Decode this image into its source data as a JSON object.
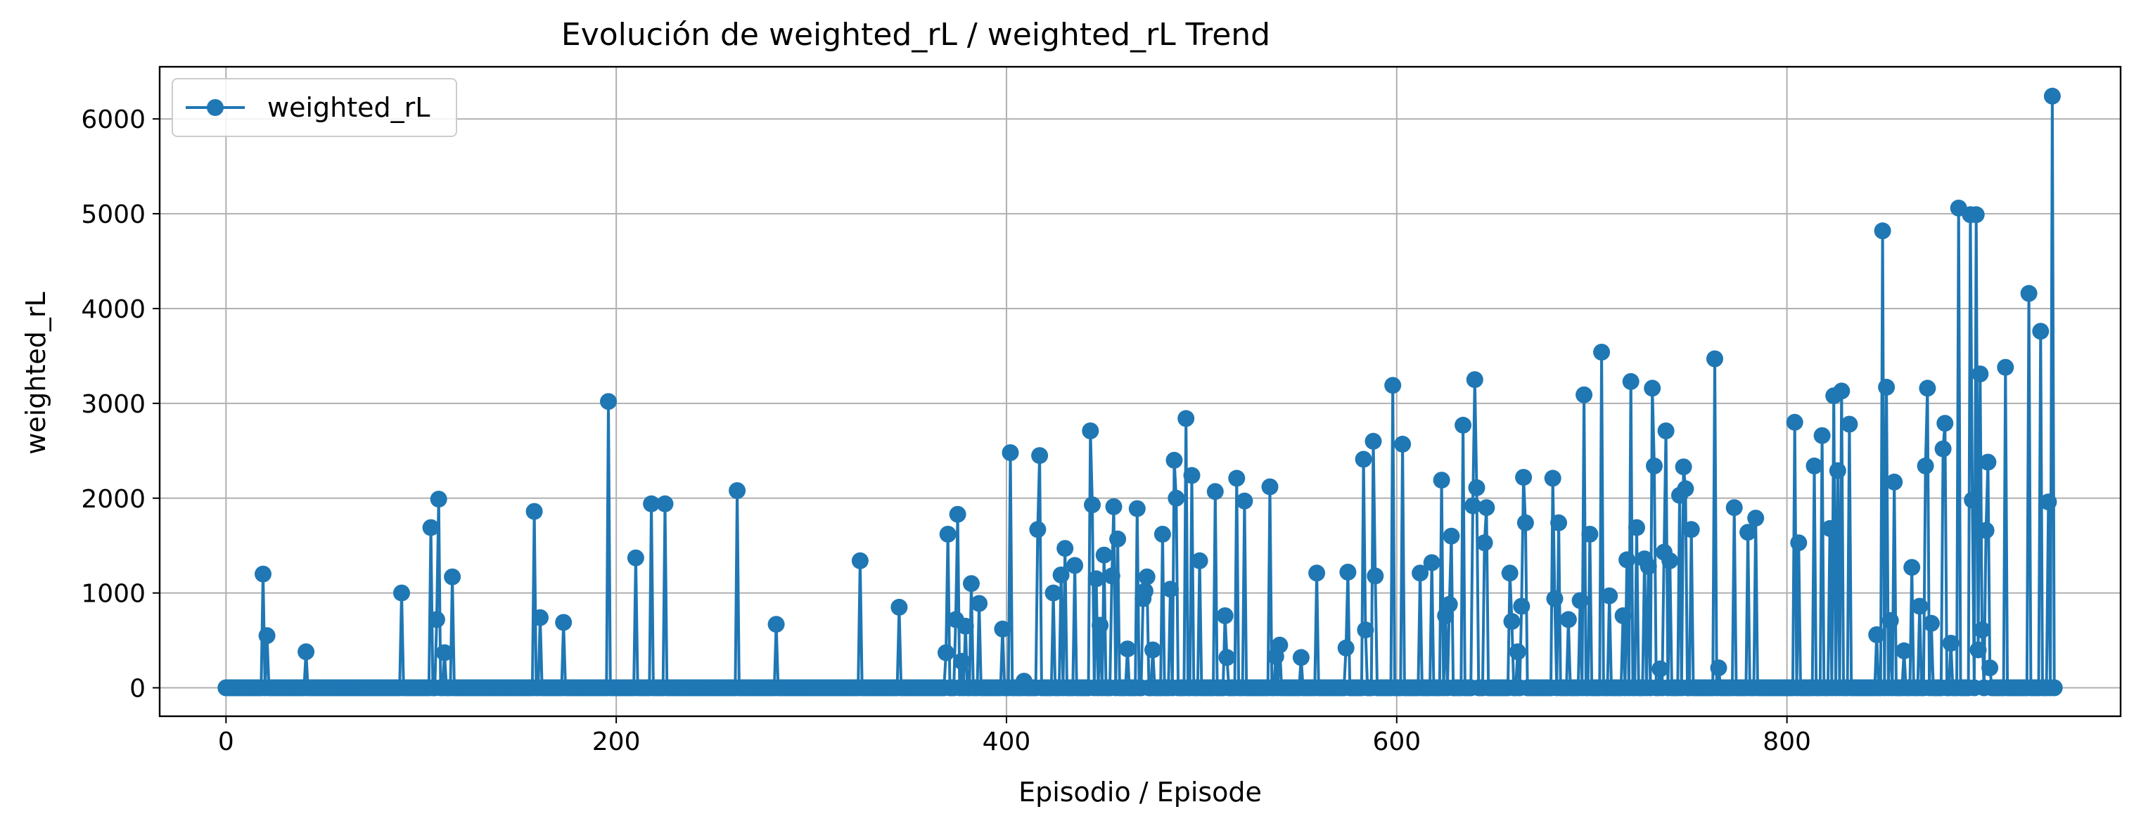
{
  "chart_data": {
    "type": "line",
    "title": "Evolución de weighted_rL / weighted_rL Trend",
    "xlabel": "Episodio / Episode",
    "ylabel": "weighted_rL",
    "xlim": [
      -34,
      971
    ],
    "ylim": [
      -300,
      6550
    ],
    "xticks": [
      0,
      200,
      400,
      600,
      800
    ],
    "yticks": [
      0,
      1000,
      2000,
      3000,
      4000,
      5000,
      6000
    ],
    "grid": true,
    "legend_position": "top-left",
    "x_range": [
      0,
      937
    ],
    "baseline_value": 0,
    "series": [
      {
        "name": "weighted_rL",
        "color": "#1f77b4",
        "marker": "circle",
        "nonzero_points": [
          [
            19,
            1200
          ],
          [
            21,
            550
          ],
          [
            41,
            380
          ],
          [
            90,
            1000
          ],
          [
            105,
            1690
          ],
          [
            108,
            720
          ],
          [
            109,
            1990
          ],
          [
            112,
            370
          ],
          [
            116,
            1170
          ],
          [
            158,
            1860
          ],
          [
            161,
            740
          ],
          [
            173,
            690
          ],
          [
            196,
            3020
          ],
          [
            210,
            1370
          ],
          [
            218,
            1940
          ],
          [
            225,
            1940
          ],
          [
            262,
            2080
          ],
          [
            282,
            670
          ],
          [
            325,
            1340
          ],
          [
            345,
            850
          ],
          [
            369,
            370
          ],
          [
            370,
            1620
          ],
          [
            374,
            720
          ],
          [
            375,
            1830
          ],
          [
            377,
            280
          ],
          [
            379,
            650
          ],
          [
            382,
            1100
          ],
          [
            386,
            890
          ],
          [
            398,
            620
          ],
          [
            402,
            2480
          ],
          [
            409,
            70
          ],
          [
            416,
            1670
          ],
          [
            417,
            2450
          ],
          [
            424,
            1000
          ],
          [
            428,
            1190
          ],
          [
            430,
            1470
          ],
          [
            435,
            1290
          ],
          [
            443,
            2710
          ],
          [
            444,
            1930
          ],
          [
            446,
            1150
          ],
          [
            448,
            660
          ],
          [
            450,
            1400
          ],
          [
            454,
            1180
          ],
          [
            455,
            1910
          ],
          [
            457,
            1570
          ],
          [
            462,
            410
          ],
          [
            467,
            1890
          ],
          [
            470,
            940
          ],
          [
            471,
            1020
          ],
          [
            472,
            1170
          ],
          [
            475,
            400
          ],
          [
            480,
            1620
          ],
          [
            484,
            1040
          ],
          [
            486,
            2400
          ],
          [
            487,
            2000
          ],
          [
            492,
            2840
          ],
          [
            495,
            2240
          ],
          [
            499,
            1340
          ],
          [
            507,
            2070
          ],
          [
            512,
            760
          ],
          [
            513,
            320
          ],
          [
            518,
            2210
          ],
          [
            522,
            1970
          ],
          [
            535,
            2120
          ],
          [
            538,
            330
          ],
          [
            540,
            450
          ],
          [
            551,
            320
          ],
          [
            559,
            1210
          ],
          [
            574,
            420
          ],
          [
            575,
            1220
          ],
          [
            583,
            2410
          ],
          [
            584,
            610
          ],
          [
            588,
            2600
          ],
          [
            589,
            1180
          ],
          [
            598,
            3190
          ],
          [
            603,
            2570
          ],
          [
            612,
            1210
          ],
          [
            618,
            1320
          ],
          [
            623,
            2190
          ],
          [
            625,
            760
          ],
          [
            627,
            880
          ],
          [
            628,
            1600
          ],
          [
            634,
            2770
          ],
          [
            639,
            1920
          ],
          [
            640,
            3250
          ],
          [
            641,
            2110
          ],
          [
            645,
            1530
          ],
          [
            646,
            1900
          ],
          [
            658,
            1210
          ],
          [
            659,
            700
          ],
          [
            662,
            380
          ],
          [
            664,
            860
          ],
          [
            665,
            2220
          ],
          [
            666,
            1740
          ],
          [
            680,
            2210
          ],
          [
            681,
            940
          ],
          [
            683,
            1740
          ],
          [
            688,
            720
          ],
          [
            694,
            920
          ],
          [
            696,
            3090
          ],
          [
            699,
            1620
          ],
          [
            705,
            3540
          ],
          [
            709,
            970
          ],
          [
            716,
            760
          ],
          [
            718,
            1350
          ],
          [
            720,
            3230
          ],
          [
            723,
            1690
          ],
          [
            727,
            1360
          ],
          [
            729,
            1280
          ],
          [
            731,
            3160
          ],
          [
            732,
            2340
          ],
          [
            735,
            200
          ],
          [
            737,
            1430
          ],
          [
            738,
            2710
          ],
          [
            740,
            1340
          ],
          [
            745,
            2030
          ],
          [
            747,
            2330
          ],
          [
            748,
            2100
          ],
          [
            751,
            1670
          ],
          [
            763,
            3470
          ],
          [
            765,
            210
          ],
          [
            773,
            1900
          ],
          [
            780,
            1640
          ],
          [
            784,
            1790
          ],
          [
            804,
            2800
          ],
          [
            806,
            1530
          ],
          [
            814,
            2340
          ],
          [
            818,
            2660
          ],
          [
            822,
            1680
          ],
          [
            824,
            3080
          ],
          [
            826,
            2290
          ],
          [
            828,
            3130
          ],
          [
            832,
            2780
          ],
          [
            846,
            560
          ],
          [
            849,
            4820
          ],
          [
            851,
            3170
          ],
          [
            853,
            710
          ],
          [
            855,
            2170
          ],
          [
            860,
            390
          ],
          [
            864,
            1270
          ],
          [
            868,
            860
          ],
          [
            871,
            2340
          ],
          [
            872,
            3160
          ],
          [
            874,
            680
          ],
          [
            880,
            2520
          ],
          [
            881,
            2790
          ],
          [
            884,
            470
          ],
          [
            888,
            5060
          ],
          [
            894,
            4990
          ],
          [
            895,
            1980
          ],
          [
            897,
            4990
          ],
          [
            898,
            400
          ],
          [
            899,
            3310
          ],
          [
            900,
            610
          ],
          [
            902,
            1660
          ],
          [
            903,
            2380
          ],
          [
            904,
            210
          ],
          [
            912,
            3380
          ],
          [
            924,
            4160
          ],
          [
            930,
            3760
          ],
          [
            934,
            1960
          ],
          [
            936,
            6240
          ]
        ]
      }
    ]
  }
}
